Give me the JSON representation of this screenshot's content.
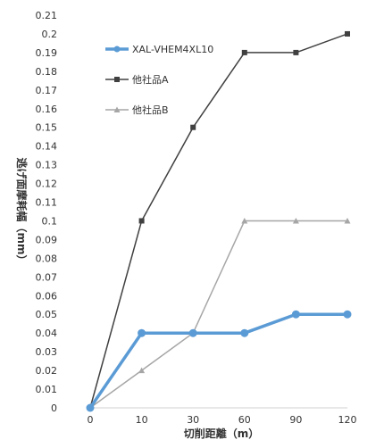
{
  "chart_data": {
    "type": "line",
    "categories": [
      "0",
      "10",
      "30",
      "60",
      "90",
      "120"
    ],
    "xlabel": "切削距離（m）",
    "ylabel": "逃げ面摩耗幅（mm）",
    "ylim": [
      0,
      0.21
    ],
    "ytick_step": 0.01,
    "grid": false,
    "legend_position": "top-left",
    "series": [
      {
        "name": "XAL-VHEM4XL10",
        "values": [
          0,
          0.04,
          0.04,
          0.04,
          0.05,
          0.05
        ],
        "color": "#5b9bd5",
        "marker": "circle"
      },
      {
        "name": "他社品A",
        "values": [
          0,
          0.1,
          0.15,
          0.19,
          0.19,
          0.2
        ],
        "color": "#404040",
        "marker": "square"
      },
      {
        "name": "他社品B",
        "values": [
          0,
          0.02,
          0.04,
          0.1,
          0.1,
          0.1
        ],
        "color": "#a6a6a6",
        "marker": "triangle"
      }
    ]
  }
}
